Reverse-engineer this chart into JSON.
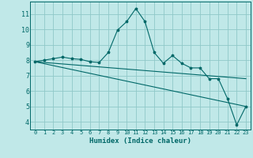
{
  "title": "",
  "xlabel": "Humidex (Indice chaleur)",
  "bg_color": "#c0e8e8",
  "line_color": "#006868",
  "grid_color": "#90c8c8",
  "xlim": [
    -0.5,
    23.5
  ],
  "ylim": [
    3.5,
    11.8
  ],
  "yticks": [
    4,
    5,
    6,
    7,
    8,
    9,
    10,
    11
  ],
  "xticks": [
    0,
    1,
    2,
    3,
    4,
    5,
    6,
    7,
    8,
    9,
    10,
    11,
    12,
    13,
    14,
    15,
    16,
    17,
    18,
    19,
    20,
    21,
    22,
    23
  ],
  "curve1_x": [
    0,
    1,
    2,
    3,
    4,
    5,
    6,
    7,
    8,
    9,
    10,
    11,
    12,
    13,
    14,
    15,
    16,
    17,
    18,
    19,
    20,
    21,
    22,
    23
  ],
  "curve1_y": [
    7.9,
    8.0,
    8.1,
    8.2,
    8.1,
    8.05,
    7.9,
    7.85,
    8.5,
    9.95,
    10.5,
    11.35,
    10.5,
    8.5,
    7.8,
    8.3,
    7.8,
    7.5,
    7.5,
    6.8,
    6.8,
    5.5,
    3.8,
    5.0
  ],
  "curve2_x": [
    0,
    23
  ],
  "curve2_y": [
    7.9,
    6.8
  ],
  "curve3_x": [
    0,
    23
  ],
  "curve3_y": [
    7.9,
    5.0
  ]
}
